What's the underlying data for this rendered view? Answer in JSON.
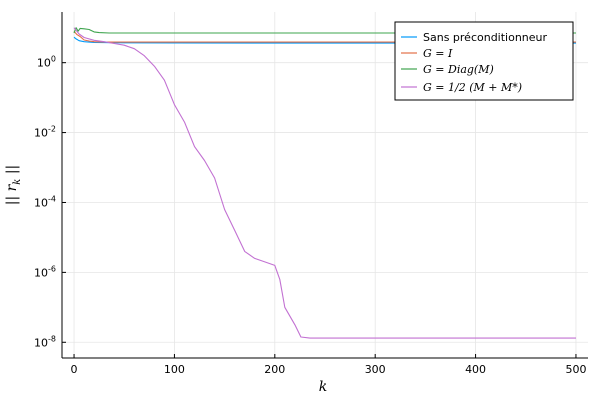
{
  "chart_data": {
    "type": "line",
    "title": "",
    "xlabel": "k",
    "ylabel": "|| r_k ||",
    "yscale": "log",
    "xlim": [
      -12,
      512
    ],
    "ylim_log10": [
      -8.45,
      1.45
    ],
    "grid": true,
    "legend_position": "top-right",
    "x_ticks": [
      0,
      100,
      200,
      300,
      400,
      500
    ],
    "x_tick_labels": [
      "0",
      "100",
      "200",
      "300",
      "400",
      "500"
    ],
    "y_ticks_log10": [
      0,
      -2,
      -4,
      -6,
      -8
    ],
    "y_tick_labels": [
      "10^0",
      "10^-2",
      "10^-4",
      "10^-6",
      "10^-8"
    ],
    "series": [
      {
        "name": "Sans préconditionneur",
        "color": "#009AFA",
        "points": [
          [
            0,
            0.73
          ],
          [
            2,
            0.68
          ],
          [
            5,
            0.63
          ],
          [
            10,
            0.6
          ],
          [
            20,
            0.58
          ],
          [
            50,
            0.57
          ],
          [
            100,
            0.565
          ],
          [
            200,
            0.56
          ],
          [
            300,
            0.56
          ],
          [
            400,
            0.56
          ],
          [
            500,
            0.56
          ]
        ]
      },
      {
        "name": "G = I",
        "color": "#E36F47",
        "points": [
          [
            0,
            0.9
          ],
          [
            3,
            0.8
          ],
          [
            6,
            0.75
          ],
          [
            10,
            0.65
          ],
          [
            15,
            0.62
          ],
          [
            20,
            0.6
          ],
          [
            30,
            0.59
          ],
          [
            50,
            0.59
          ],
          [
            100,
            0.59
          ],
          [
            300,
            0.59
          ],
          [
            500,
            0.59
          ]
        ]
      },
      {
        "name": "G = Diag(M)",
        "color": "#3EA44E",
        "points": [
          [
            0,
            0.85
          ],
          [
            2,
            1.0
          ],
          [
            4,
            0.9
          ],
          [
            6,
            0.98
          ],
          [
            10,
            0.97
          ],
          [
            15,
            0.95
          ],
          [
            20,
            0.88
          ],
          [
            25,
            0.86
          ],
          [
            35,
            0.85
          ],
          [
            50,
            0.85
          ],
          [
            100,
            0.85
          ],
          [
            300,
            0.85
          ],
          [
            500,
            0.85
          ]
        ]
      },
      {
        "name": "G = 1/2 (M + M*)",
        "color": "#C271D2",
        "points": [
          [
            0,
            1.0
          ],
          [
            5,
            0.82
          ],
          [
            10,
            0.72
          ],
          [
            20,
            0.64
          ],
          [
            30,
            0.6
          ],
          [
            40,
            0.55
          ],
          [
            50,
            0.5
          ],
          [
            60,
            0.4
          ],
          [
            70,
            0.2
          ],
          [
            80,
            -0.1
          ],
          [
            90,
            -0.5
          ],
          [
            100,
            -1.2
          ],
          [
            110,
            -1.7
          ],
          [
            120,
            -2.4
          ],
          [
            130,
            -2.8
          ],
          [
            140,
            -3.3
          ],
          [
            150,
            -4.2
          ],
          [
            160,
            -4.8
          ],
          [
            170,
            -5.4
          ],
          [
            180,
            -5.6
          ],
          [
            190,
            -5.7
          ],
          [
            200,
            -5.8
          ],
          [
            205,
            -6.2
          ],
          [
            210,
            -7.0
          ],
          [
            220,
            -7.5
          ],
          [
            226,
            -7.85
          ],
          [
            235,
            -7.88
          ],
          [
            300,
            -7.88
          ],
          [
            400,
            -7.88
          ],
          [
            500,
            -7.88
          ]
        ]
      }
    ]
  }
}
